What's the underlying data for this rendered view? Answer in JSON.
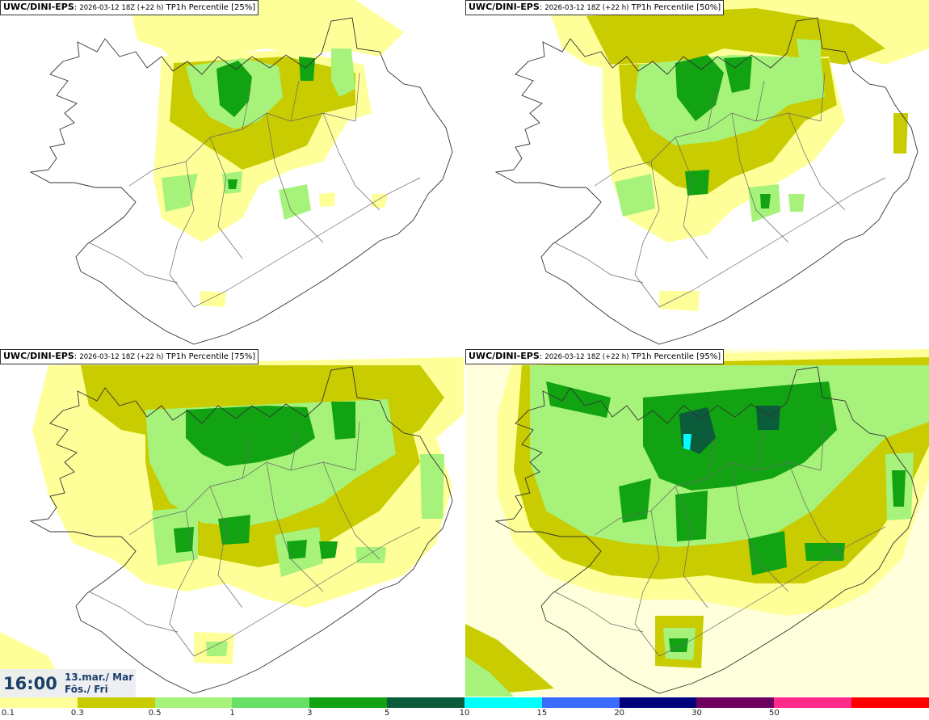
{
  "panels": [
    {
      "model": "UWC/DINI-EPS",
      "run": "2026-03-12 18Z (+22 h)",
      "field": "TP1h Percentile [25%]"
    },
    {
      "model": "UWC/DINI-EPS",
      "run": "2026-03-12 18Z (+22 h)",
      "field": "TP1h Percentile [50%]"
    },
    {
      "model": "UWC/DINI-EPS",
      "run": "2026-03-12 18Z (+22 h)",
      "field": "TP1h Percentile [75%]"
    },
    {
      "model": "UWC/DINI-EPS",
      "run": "2026-03-12 18Z (+22 h)",
      "field": "TP1h Percentile [95%]"
    }
  ],
  "valid_time": {
    "time": "16:00",
    "date_line": "13.mar./ Mar",
    "day_line": "Fös./ Fri"
  },
  "legend": {
    "colors": [
      "#ffff99",
      "#c8cc00",
      "#a6f27a",
      "#66e066",
      "#12a312",
      "#0a5c3a",
      "#00ffff",
      "#3a6bff",
      "#00007a",
      "#6e0060",
      "#ff2a8a",
      "#ff0000"
    ],
    "labels": [
      "0.1",
      "0.3",
      "0.5",
      "1",
      "3",
      "5",
      "10",
      "15",
      "20",
      "30",
      "50"
    ]
  }
}
